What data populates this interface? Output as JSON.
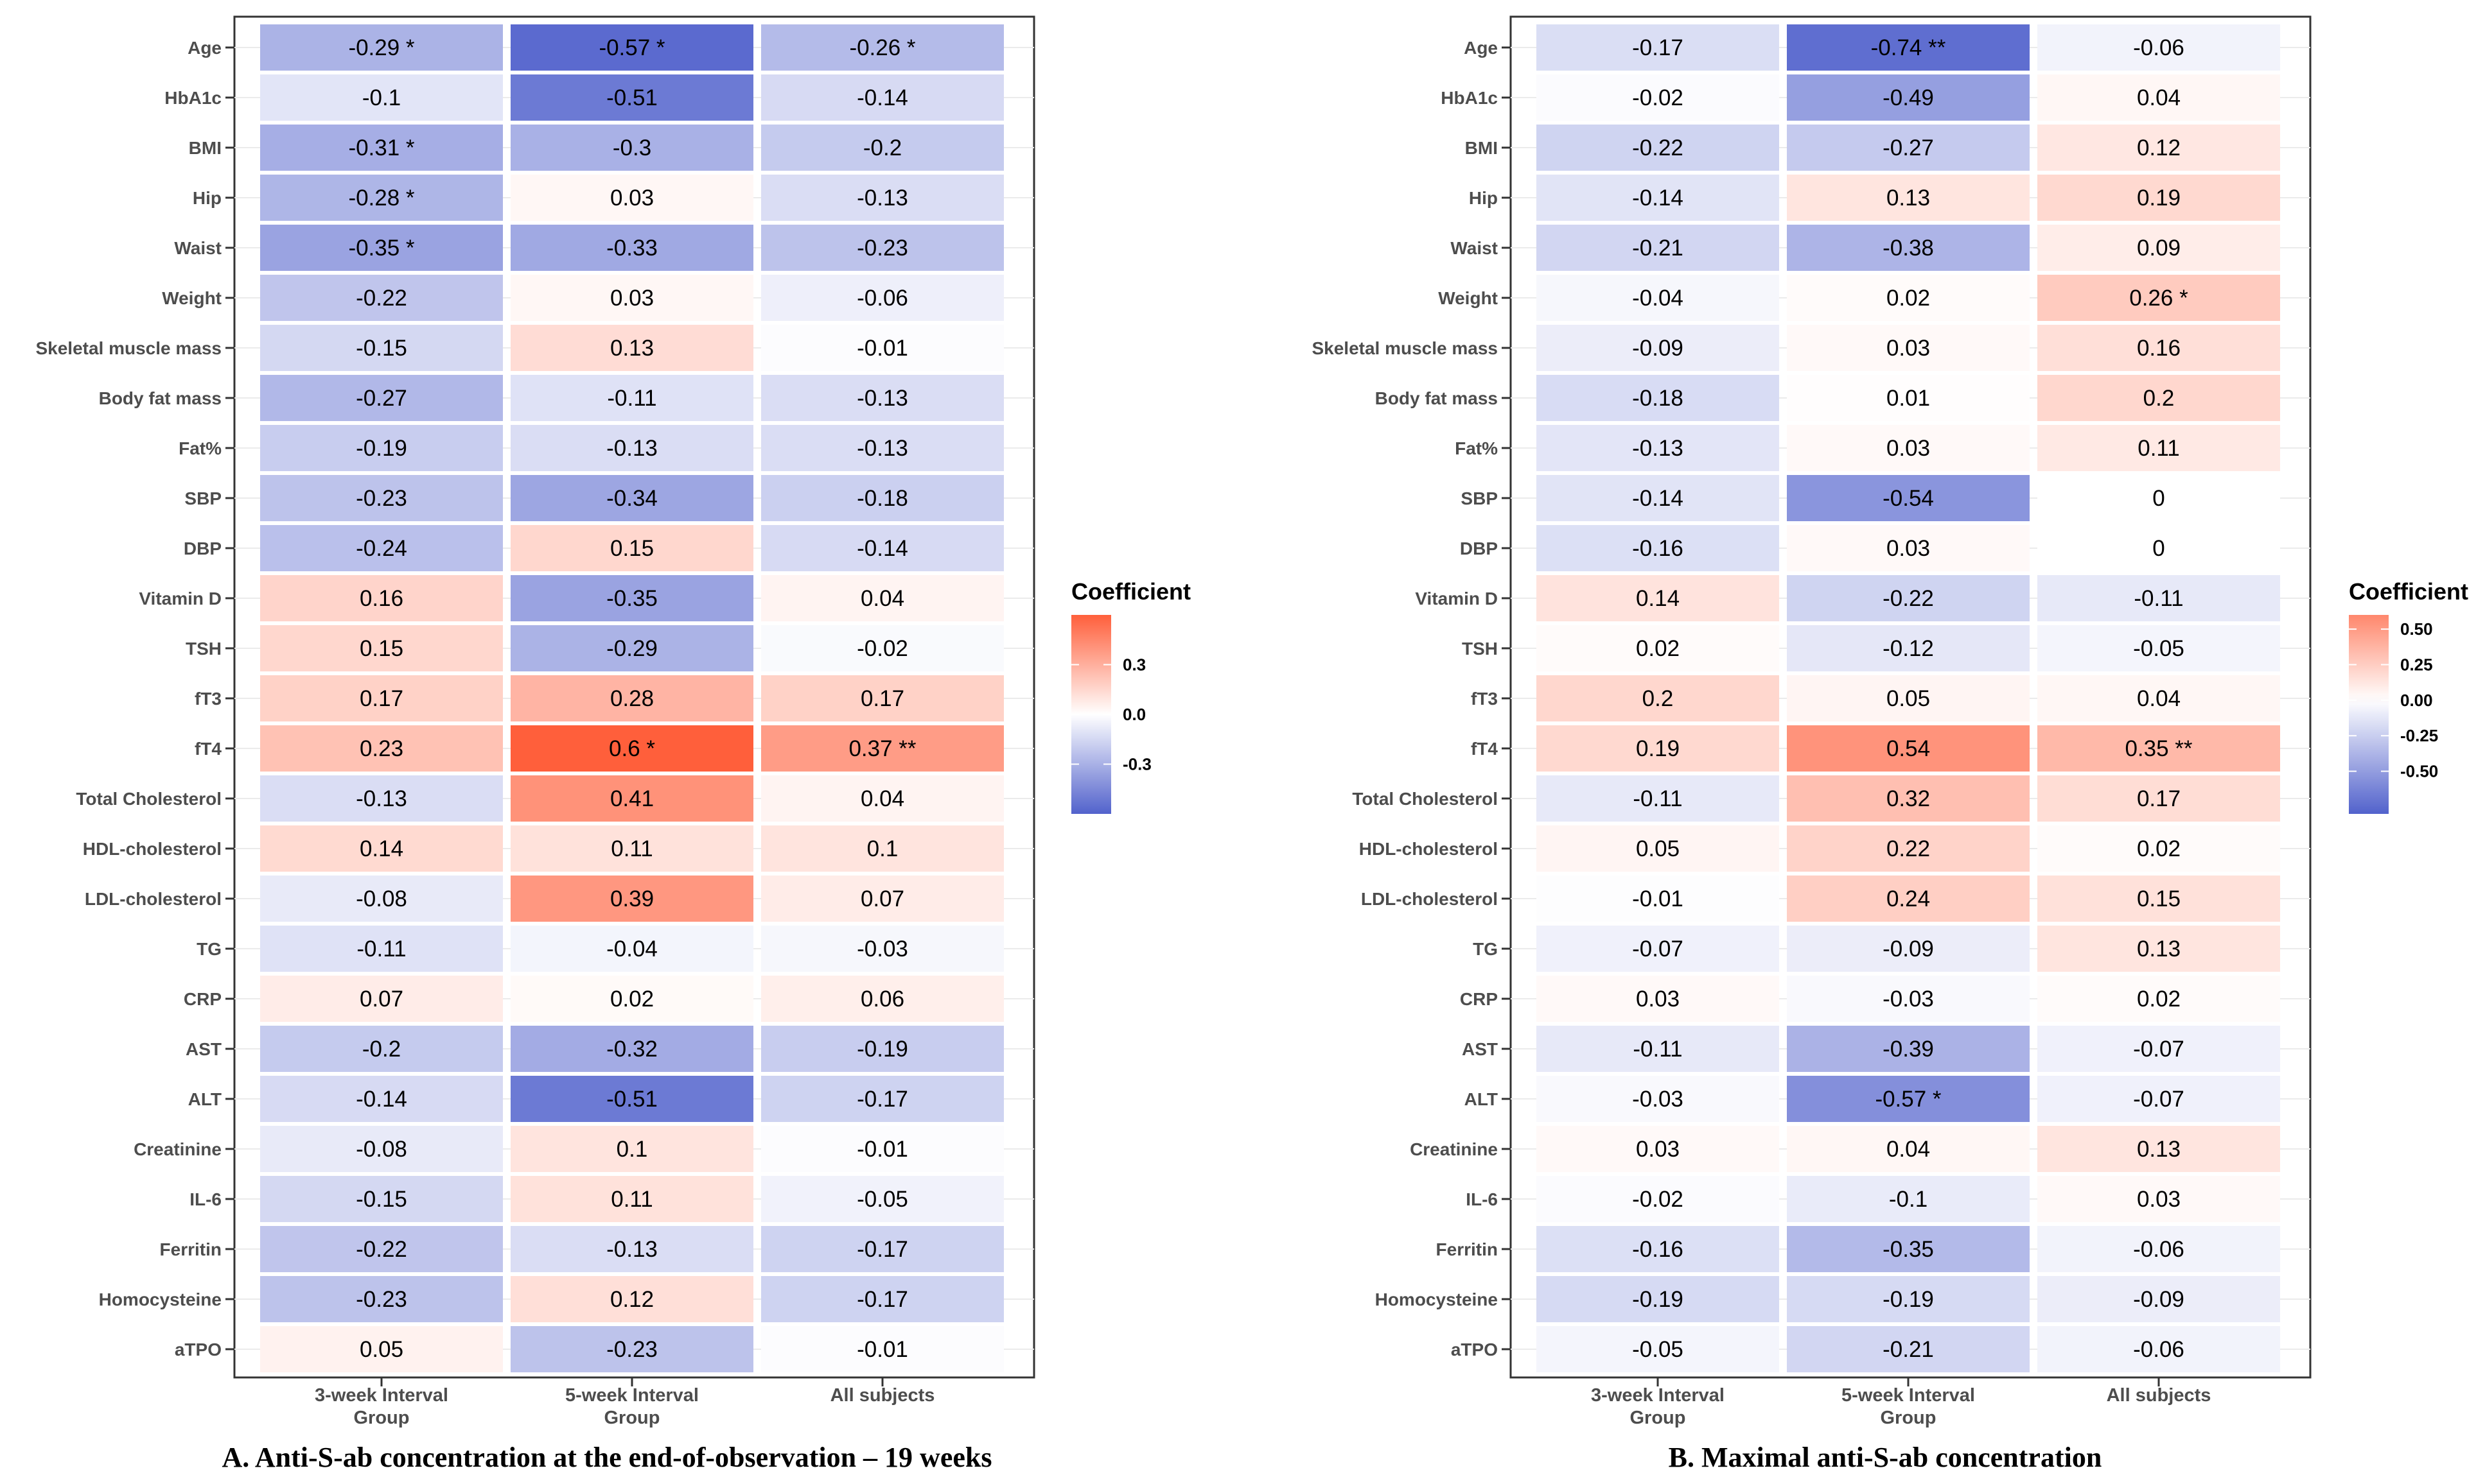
{
  "chart_data": [
    {
      "type": "heatmap",
      "title": "A. Anti-S-ab concentration at the end-of-observation – 19 weeks",
      "columns": [
        "3-week Interval Group",
        "5-week Interval Group",
        "All subjects"
      ],
      "column_labels": [
        [
          "3-week Interval",
          "Group"
        ],
        [
          "5-week Interval",
          "Group"
        ],
        [
          "All subjects"
        ]
      ],
      "rows": [
        "Age",
        "HbA1c",
        "BMI",
        "Hip",
        "Waist",
        "Weight",
        "Skeletal muscle mass",
        "Body fat mass",
        "Fat%",
        "SBP",
        "DBP",
        "Vitamin D",
        "TSH",
        "fT3",
        "fT4",
        "Total Cholesterol",
        "HDL-cholesterol",
        "LDL-cholesterol",
        "TG",
        "CRP",
        "AST",
        "ALT",
        "Creatinine",
        "IL-6",
        "Ferritin",
        "Homocysteine",
        "aTPO"
      ],
      "values": [
        [
          -0.29,
          -0.57,
          -0.26
        ],
        [
          -0.1,
          -0.51,
          -0.14
        ],
        [
          -0.31,
          -0.3,
          -0.2
        ],
        [
          -0.28,
          0.03,
          -0.13
        ],
        [
          -0.35,
          -0.33,
          -0.23
        ],
        [
          -0.22,
          0.03,
          -0.06
        ],
        [
          -0.15,
          0.13,
          -0.01
        ],
        [
          -0.27,
          -0.11,
          -0.13
        ],
        [
          -0.19,
          -0.13,
          -0.13
        ],
        [
          -0.23,
          -0.34,
          -0.18
        ],
        [
          -0.24,
          0.15,
          -0.14
        ],
        [
          0.16,
          -0.35,
          0.04
        ],
        [
          0.15,
          -0.29,
          -0.02
        ],
        [
          0.17,
          0.28,
          0.17
        ],
        [
          0.23,
          0.6,
          0.37
        ],
        [
          -0.13,
          0.41,
          0.04
        ],
        [
          0.14,
          0.11,
          0.1
        ],
        [
          -0.08,
          0.39,
          0.07
        ],
        [
          -0.11,
          -0.04,
          -0.03
        ],
        [
          0.07,
          0.02,
          0.06
        ],
        [
          -0.2,
          -0.32,
          -0.19
        ],
        [
          -0.14,
          -0.51,
          -0.17
        ],
        [
          -0.08,
          0.1,
          -0.01
        ],
        [
          -0.15,
          0.11,
          -0.05
        ],
        [
          -0.22,
          -0.13,
          -0.17
        ],
        [
          -0.23,
          0.12,
          -0.17
        ],
        [
          0.05,
          -0.23,
          -0.01
        ]
      ],
      "labels": [
        [
          "-0.29 *",
          "-0.57 *",
          "-0.26 *"
        ],
        [
          "-0.1",
          "-0.51",
          "-0.14"
        ],
        [
          "-0.31 *",
          "-0.3",
          "-0.2"
        ],
        [
          "-0.28 *",
          "0.03",
          "-0.13"
        ],
        [
          "-0.35 *",
          "-0.33",
          "-0.23"
        ],
        [
          "-0.22",
          "0.03",
          "-0.06"
        ],
        [
          "-0.15",
          "0.13",
          "-0.01"
        ],
        [
          "-0.27",
          "-0.11",
          "-0.13"
        ],
        [
          "-0.19",
          "-0.13",
          "-0.13"
        ],
        [
          "-0.23",
          "-0.34",
          "-0.18"
        ],
        [
          "-0.24",
          "0.15",
          "-0.14"
        ],
        [
          "0.16",
          "-0.35",
          "0.04"
        ],
        [
          "0.15",
          "-0.29",
          "-0.02"
        ],
        [
          "0.17",
          "0.28",
          "0.17"
        ],
        [
          "0.23",
          "0.6 *",
          "0.37 **"
        ],
        [
          "-0.13",
          "0.41",
          "0.04"
        ],
        [
          "0.14",
          "0.11",
          "0.1"
        ],
        [
          "-0.08",
          "0.39",
          "0.07"
        ],
        [
          "-0.11",
          "-0.04",
          "-0.03"
        ],
        [
          "0.07",
          "0.02",
          "0.06"
        ],
        [
          "-0.2",
          "-0.32",
          "-0.19"
        ],
        [
          "-0.14",
          "-0.51",
          "-0.17"
        ],
        [
          "-0.08",
          "0.1",
          "-0.01"
        ],
        [
          "-0.15",
          "0.11",
          "-0.05"
        ],
        [
          "-0.22",
          "-0.13",
          "-0.17"
        ],
        [
          "-0.23",
          "0.12",
          "-0.17"
        ],
        [
          "0.05",
          "-0.23",
          "-0.01"
        ]
      ],
      "legend": {
        "title": "Coefficient",
        "ticks": [
          "0.3",
          "0.0",
          "-0.3"
        ],
        "tick_values": [
          0.3,
          0.0,
          -0.3
        ],
        "range": [
          -0.6,
          0.6
        ],
        "placement": "right"
      },
      "colors": {
        "low": "#5262cc",
        "mid": "#ffffff",
        "high": "#ff5f3b"
      }
    },
    {
      "type": "heatmap",
      "title": "B. Maximal anti-S-ab concentration",
      "columns": [
        "3-week Interval Group",
        "5-week Interval Group",
        "All subjects"
      ],
      "column_labels": [
        [
          "3-week Interval",
          "Group"
        ],
        [
          "5-week Interval",
          "Group"
        ],
        [
          "All subjects"
        ]
      ],
      "rows": [
        "Age",
        "HbA1c",
        "BMI",
        "Hip",
        "Waist",
        "Weight",
        "Skeletal muscle mass",
        "Body fat mass",
        "Fat%",
        "SBP",
        "DBP",
        "Vitamin D",
        "TSH",
        "fT3",
        "fT4",
        "Total Cholesterol",
        "HDL-cholesterol",
        "LDL-cholesterol",
        "TG",
        "CRP",
        "AST",
        "ALT",
        "Creatinine",
        "IL-6",
        "Ferritin",
        "Homocysteine",
        "aTPO"
      ],
      "values": [
        [
          -0.17,
          -0.74,
          -0.06
        ],
        [
          -0.02,
          -0.49,
          0.04
        ],
        [
          -0.22,
          -0.27,
          0.12
        ],
        [
          -0.14,
          0.13,
          0.19
        ],
        [
          -0.21,
          -0.38,
          0.09
        ],
        [
          -0.04,
          0.02,
          0.26
        ],
        [
          -0.09,
          0.03,
          0.16
        ],
        [
          -0.18,
          0.01,
          0.2
        ],
        [
          -0.13,
          0.03,
          0.11
        ],
        [
          -0.14,
          -0.54,
          0
        ],
        [
          -0.16,
          0.03,
          0
        ],
        [
          0.14,
          -0.22,
          -0.11
        ],
        [
          0.02,
          -0.12,
          -0.05
        ],
        [
          0.2,
          0.05,
          0.04
        ],
        [
          0.19,
          0.54,
          0.35
        ],
        [
          -0.11,
          0.32,
          0.17
        ],
        [
          0.05,
          0.22,
          0.02
        ],
        [
          -0.01,
          0.24,
          0.15
        ],
        [
          -0.07,
          -0.09,
          0.13
        ],
        [
          0.03,
          -0.03,
          0.02
        ],
        [
          -0.11,
          -0.39,
          -0.07
        ],
        [
          -0.03,
          -0.57,
          -0.07
        ],
        [
          0.03,
          0.04,
          0.13
        ],
        [
          -0.02,
          -0.1,
          0.03
        ],
        [
          -0.16,
          -0.35,
          -0.06
        ],
        [
          -0.19,
          -0.19,
          -0.09
        ],
        [
          -0.05,
          -0.21,
          -0.06
        ]
      ],
      "labels": [
        [
          "-0.17",
          "-0.74 **",
          "-0.06"
        ],
        [
          "-0.02",
          "-0.49",
          "0.04"
        ],
        [
          "-0.22",
          "-0.27",
          "0.12"
        ],
        [
          "-0.14",
          "0.13",
          "0.19"
        ],
        [
          "-0.21",
          "-0.38",
          "0.09"
        ],
        [
          "-0.04",
          "0.02",
          "0.26 *"
        ],
        [
          "-0.09",
          "0.03",
          "0.16"
        ],
        [
          "-0.18",
          "0.01",
          "0.2"
        ],
        [
          "-0.13",
          "0.03",
          "0.11"
        ],
        [
          "-0.14",
          "-0.54",
          "0"
        ],
        [
          "-0.16",
          "0.03",
          "0"
        ],
        [
          "0.14",
          "-0.22",
          "-0.11"
        ],
        [
          "0.02",
          "-0.12",
          "-0.05"
        ],
        [
          "0.2",
          "0.05",
          "0.04"
        ],
        [
          "0.19",
          "0.54",
          "0.35 **"
        ],
        [
          "-0.11",
          "0.32",
          "0.17"
        ],
        [
          "0.05",
          "0.22",
          "0.02"
        ],
        [
          "-0.01",
          "0.24",
          "0.15"
        ],
        [
          "-0.07",
          "-0.09",
          "0.13"
        ],
        [
          "0.03",
          "-0.03",
          "0.02"
        ],
        [
          "-0.11",
          "-0.39",
          "-0.07"
        ],
        [
          "-0.03",
          "-0.57 *",
          "-0.07"
        ],
        [
          "0.03",
          "0.04",
          "0.13"
        ],
        [
          "-0.02",
          "-0.1",
          "0.03"
        ],
        [
          "-0.16",
          "-0.35",
          "-0.06"
        ],
        [
          "-0.19",
          "-0.19",
          "-0.09"
        ],
        [
          "-0.05",
          "-0.21",
          "-0.06"
        ]
      ],
      "legend": {
        "title": "Coefficient",
        "ticks": [
          "0.50",
          "0.25",
          "0.00",
          "-0.25",
          "-0.50"
        ],
        "tick_values": [
          0.5,
          0.25,
          0.0,
          -0.25,
          -0.5
        ],
        "range": [
          -0.8,
          0.6
        ],
        "placement": "right"
      },
      "colors": {
        "low": "#5262cc",
        "mid": "#ffffff",
        "high": "#ff5f3b"
      }
    }
  ]
}
